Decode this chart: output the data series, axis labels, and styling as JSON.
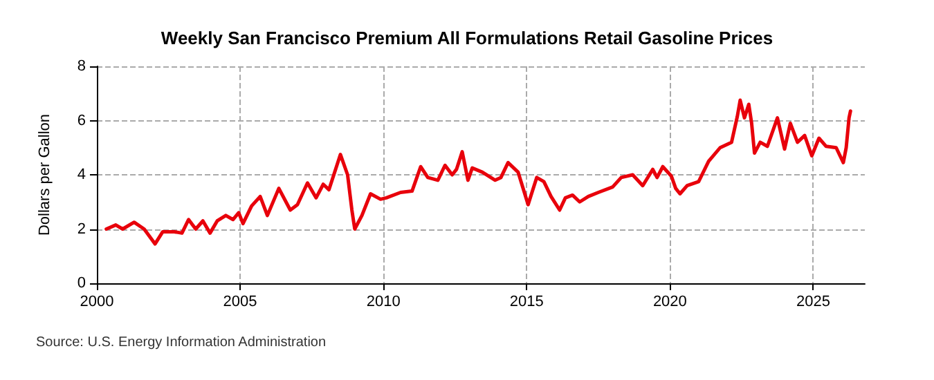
{
  "chart_data": {
    "type": "line",
    "title": "Weekly San Francisco Premium All Formulations Retail Gasoline Prices",
    "ylabel": "Dollars per Gallon",
    "annotations": [
      "Source: U.S. Energy Information Administration"
    ],
    "x": [
      2000.33,
      2000.66,
      2000.9,
      2001.3,
      2001.65,
      2002.03,
      2002.3,
      2002.7,
      2002.97,
      2003.2,
      2003.45,
      2003.7,
      2003.95,
      2004.2,
      2004.5,
      2004.75,
      2004.95,
      2005.1,
      2005.4,
      2005.7,
      2005.95,
      2006.35,
      2006.75,
      2007.0,
      2007.35,
      2007.65,
      2007.9,
      2008.1,
      2008.5,
      2008.75,
      2008.9,
      2009.0,
      2009.25,
      2009.55,
      2009.9,
      2010.1,
      2010.6,
      2011.0,
      2011.3,
      2011.55,
      2011.9,
      2012.15,
      2012.4,
      2012.55,
      2012.75,
      2012.95,
      2013.1,
      2013.45,
      2013.9,
      2014.1,
      2014.35,
      2014.7,
      2015.05,
      2015.2,
      2015.35,
      2015.6,
      2015.85,
      2016.15,
      2016.35,
      2016.6,
      2016.85,
      2017.15,
      2017.5,
      2018.0,
      2018.3,
      2018.7,
      2019.05,
      2019.4,
      2019.55,
      2019.75,
      2020.05,
      2020.2,
      2020.35,
      2020.6,
      2021.0,
      2021.35,
      2021.75,
      2022.15,
      2022.35,
      2022.45,
      2022.6,
      2022.75,
      2022.85,
      2022.95,
      2023.15,
      2023.4,
      2023.75,
      2024.0,
      2024.2,
      2024.45,
      2024.7,
      2024.95,
      2025.2,
      2025.45,
      2025.8,
      2026.05,
      2026.15,
      2026.25,
      2026.3
    ],
    "series": [
      {
        "color": "#e8000b",
        "values": [
          2.0,
          2.15,
          2.0,
          2.25,
          2.0,
          1.45,
          1.9,
          1.9,
          1.85,
          2.35,
          2.0,
          2.3,
          1.85,
          2.3,
          2.5,
          2.35,
          2.6,
          2.2,
          2.85,
          3.2,
          2.5,
          3.5,
          2.7,
          2.9,
          3.7,
          3.15,
          3.65,
          3.45,
          4.75,
          4.0,
          2.7,
          2.0,
          2.5,
          3.3,
          3.1,
          3.15,
          3.35,
          3.4,
          4.3,
          3.9,
          3.8,
          4.35,
          4.0,
          4.2,
          4.85,
          3.8,
          4.25,
          4.1,
          3.8,
          3.9,
          4.45,
          4.1,
          2.9,
          3.4,
          3.9,
          3.75,
          3.2,
          2.7,
          3.15,
          3.25,
          3.0,
          3.2,
          3.35,
          3.55,
          3.9,
          4.0,
          3.6,
          4.2,
          3.9,
          4.3,
          3.95,
          3.5,
          3.3,
          3.6,
          3.75,
          4.5,
          5.0,
          5.2,
          6.15,
          6.75,
          6.1,
          6.6,
          5.9,
          4.8,
          5.2,
          5.05,
          6.1,
          4.95,
          5.9,
          5.2,
          5.45,
          4.7,
          5.35,
          5.05,
          5.0,
          4.45,
          5.0,
          6.1,
          6.35
        ]
      }
    ],
    "xlim": [
      2000,
      2026.8
    ],
    "xticks": [
      2000,
      2005,
      2010,
      2015,
      2020,
      2025
    ],
    "ylim": [
      0,
      8
    ],
    "yticks": [
      0,
      2,
      4,
      6,
      8
    ],
    "grid": true,
    "marker": "none",
    "line_style": "solid"
  }
}
